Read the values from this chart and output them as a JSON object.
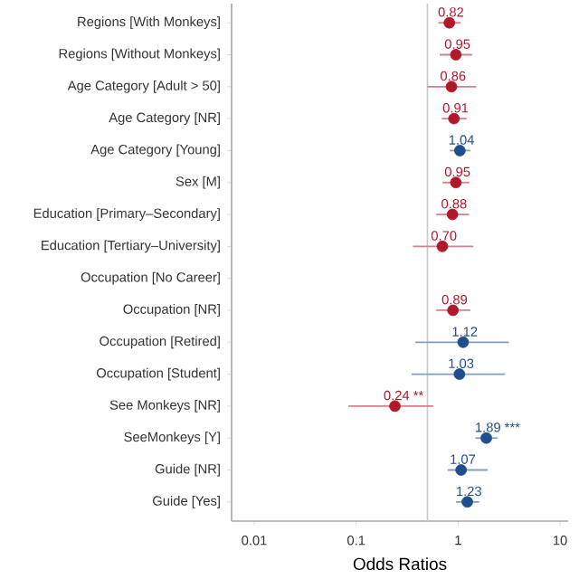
{
  "chart_data": {
    "type": "scatter",
    "orientation": "horizontal",
    "xlabel": "Odds Ratios",
    "categories": [
      "Regions [With Monkeys]",
      "Regions [Without Monkeys]",
      "Age Category [Adult > 50]",
      "Age Category [NR]",
      "Age Category [Young]",
      "Sex [M]",
      "Education [Primary–Secondary]",
      "Education [Tertiary–University]",
      "Occupation [No Career]",
      "Occupation [NR]",
      "Occupation [Retired]",
      "Occupation [Student]",
      "See Monkeys [NR]",
      "SeeMonkeys [Y]",
      "Guide [NR]",
      "Guide [Yes]"
    ],
    "values": [
      0.82,
      0.95,
      0.86,
      0.91,
      1.04,
      0.95,
      0.88,
      0.7,
      null,
      0.89,
      1.12,
      1.03,
      0.24,
      1.89,
      1.07,
      1.23
    ],
    "value_labels": [
      "0.82",
      "0.95",
      "0.86",
      "0.91",
      "1.04",
      "0.95",
      "0.88",
      "0.70",
      null,
      "0.89",
      "1.12",
      "1.03",
      "0.24 **",
      "1.89 ***",
      "1.07",
      "1.23"
    ],
    "errors": [
      [
        0.64,
        1.06
      ],
      [
        0.66,
        1.37
      ],
      [
        0.5,
        1.51
      ],
      [
        0.69,
        1.21
      ],
      [
        0.83,
        1.32
      ],
      [
        0.7,
        1.29
      ],
      [
        0.61,
        1.28
      ],
      [
        0.36,
        1.41
      ],
      null,
      [
        0.61,
        1.32
      ],
      [
        0.38,
        3.14
      ],
      [
        0.35,
        2.88
      ],
      [
        0.084,
        0.57
      ],
      [
        1.48,
        2.43
      ],
      [
        0.79,
        1.95
      ],
      [
        0.95,
        1.61
      ]
    ],
    "colors": [
      "#b2182b",
      "#b2182b",
      "#b2182b",
      "#b2182b",
      "#1f4e8c",
      "#b2182b",
      "#b2182b",
      "#b2182b",
      null,
      "#b2182b",
      "#1f4e8c",
      "#1f4e8c",
      "#b2182b",
      "#1f4e8c",
      "#1f4e8c",
      "#1f4e8c"
    ],
    "log": "x",
    "xlim": [
      0.006,
      12
    ],
    "xticks": [
      0.01,
      0.1,
      1,
      10
    ],
    "ref_lines": [
      {
        "axis": "x",
        "value": 0.5,
        "color": "#c8c8c8"
      }
    ],
    "grid": false
  }
}
